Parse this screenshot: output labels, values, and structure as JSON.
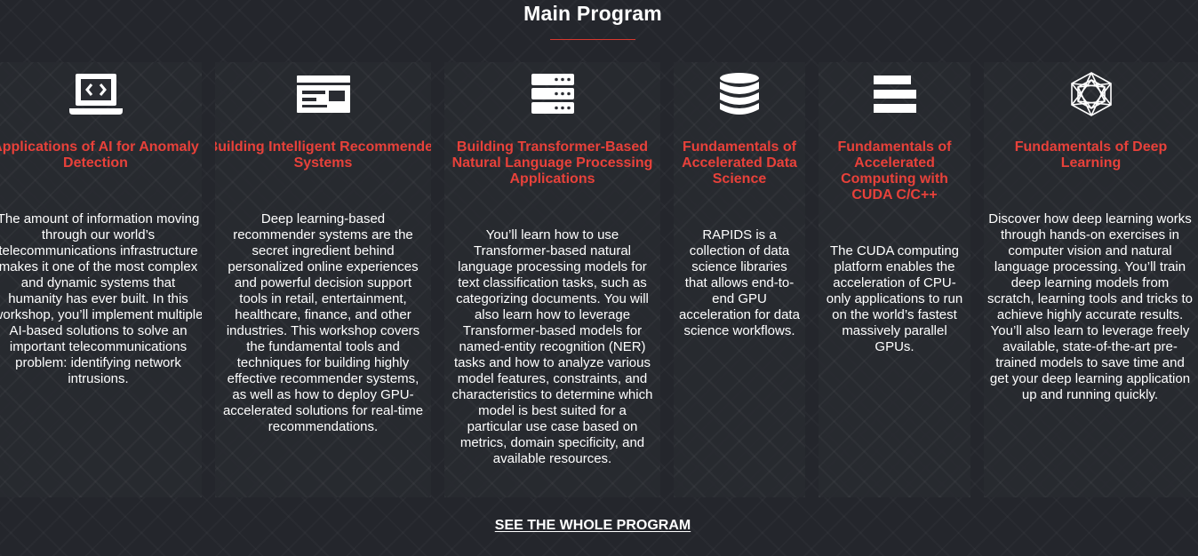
{
  "section": {
    "title": "Main Program"
  },
  "courses": [
    {
      "title": "Applications of AI for Anomaly Detection",
      "icon": "laptop-code-icon",
      "description": "The amount of information moving through our world’s telecommunications infrastructure makes it one of the most complex and dynamic systems that humanity has ever built. In this workshop, you’ll implement multiple AI-based solutions to solve an important telecommunications problem: identifying network intrusions."
    },
    {
      "title": "Building Intelligent Recommender Systems",
      "icon": "browser-card-icon",
      "description": "Deep learning-based recommender systems are the secret ingredient behind personalized online experiences and powerful decision support tools in retail, entertainment, healthcare, finance, and other industries. This workshop covers the fundamental tools and techniques for building highly effective recommender systems, as well as how to deploy GPU-accelerated solutions for real-time recommendations."
    },
    {
      "title": "Building Transformer-Based Natural Language Processing Applications",
      "icon": "server-stack-icon",
      "description": "You’ll learn how to use Transformer-based natural language processing models for text classification tasks, such as categorizing documents. You will also learn how to leverage Transformer-based models for named-entity recognition (NER) tasks and how to analyze various model features, constraints, and characteristics to determine which model is best suited for a particular use case based on metrics, domain specificity, and available resources."
    },
    {
      "title": "Fundamentals of Accelerated Data Science",
      "icon": "database-icon",
      "description": "RAPIDS is a collection of data science libraries that allows end-to-end GPU acceleration for data science workflows."
    },
    {
      "title": "Fundamentals of Accelerated Computing with CUDA C/C++",
      "icon": "stacked-bars-icon",
      "description": "The CUDA computing platform enables the acceleration of CPU-only applications to run on the world’s fastest massively parallel GPUs."
    },
    {
      "title": "Fundamentals of Deep Learning",
      "icon": "neural-network-icon",
      "description": "Discover how deep learning works through hands-on exercises in computer vision and natural language processing. You’ll train deep learning models from scratch, learning tools and tricks to achieve highly accurate results. You’ll also learn to leverage freely available, state-of-the-art pre-trained models to save time and get your deep learning application up and running quickly."
    }
  ],
  "cta": {
    "label": "SEE THE WHOLE PROGRAM"
  },
  "colors": {
    "background": "#24262c",
    "card": "#2a2c32",
    "accent": "#e8413a",
    "text": "#ffffff"
  }
}
